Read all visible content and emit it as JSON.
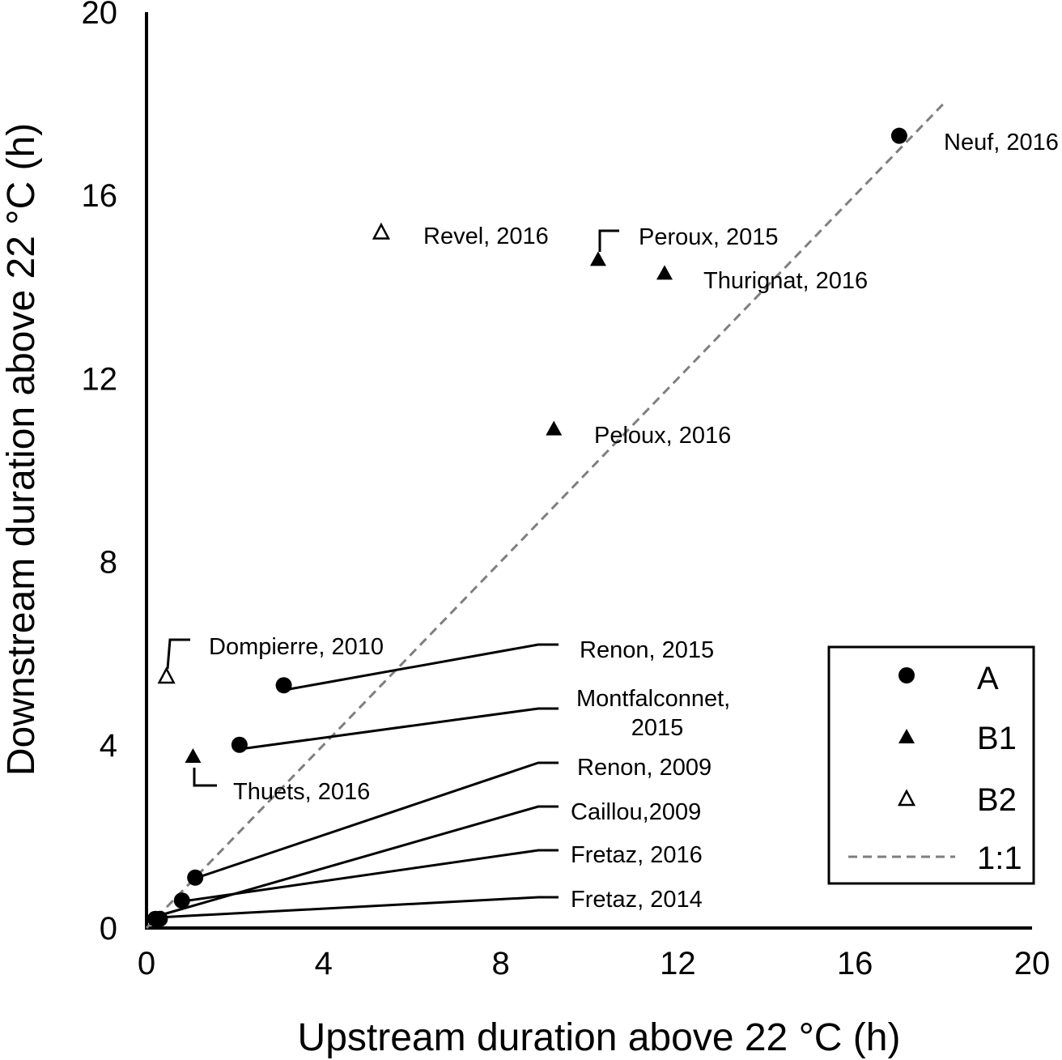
{
  "chart_data": {
    "type": "scatter",
    "xlabel": "Upstream duration above 22 °C (h)",
    "ylabel": "Downstream duration above 22 °C (h)",
    "xlim": [
      0,
      20
    ],
    "ylim": [
      0,
      20
    ],
    "x_ticks": [
      "0",
      "4",
      "8",
      "12",
      "16",
      "20"
    ],
    "y_ticks": [
      "0",
      "4",
      "8",
      "12",
      "16",
      "20"
    ],
    "grid": false,
    "legend_position": "bottom-right",
    "legend": [
      "A",
      "B1",
      "B2",
      "1:1"
    ],
    "series": [
      {
        "name": "A",
        "marker": "filled-circle",
        "points": [
          {
            "label": "Neuf, 2016",
            "x": 17.0,
            "y": 17.3
          },
          {
            "label": "Renon, 2015",
            "x": 3.1,
            "y": 5.3
          },
          {
            "label": "Montfalconnet, 2015",
            "x": 2.1,
            "y": 4.0
          },
          {
            "label": "Renon, 2009",
            "x": 1.1,
            "y": 1.1
          },
          {
            "label": "Caillou,2009",
            "x": 0.2,
            "y": 0.2
          },
          {
            "label": "Fretaz, 2016",
            "x": 0.8,
            "y": 0.6
          },
          {
            "label": "Fretaz, 2014",
            "x": 0.3,
            "y": 0.2
          }
        ]
      },
      {
        "name": "B1",
        "marker": "filled-triangle",
        "points": [
          {
            "label": "Peroux, 2015",
            "x": 10.2,
            "y": 14.6
          },
          {
            "label": "Thurignat, 2016",
            "x": 11.7,
            "y": 14.3
          },
          {
            "label": "Peloux, 2016",
            "x": 9.2,
            "y": 10.9
          },
          {
            "label": "Thuets, 2016",
            "x": 1.05,
            "y": 3.75
          }
        ]
      },
      {
        "name": "B2",
        "marker": "open-triangle",
        "points": [
          {
            "label": "Revel, 2016",
            "x": 5.3,
            "y": 15.2
          },
          {
            "label": "Dompierre, 2010",
            "x": 0.45,
            "y": 5.5
          }
        ]
      },
      {
        "name": "1:1",
        "marker": "dashed-line",
        "points": [
          {
            "x": 0,
            "y": 0
          },
          {
            "x": 18,
            "y": 18
          }
        ]
      }
    ]
  }
}
